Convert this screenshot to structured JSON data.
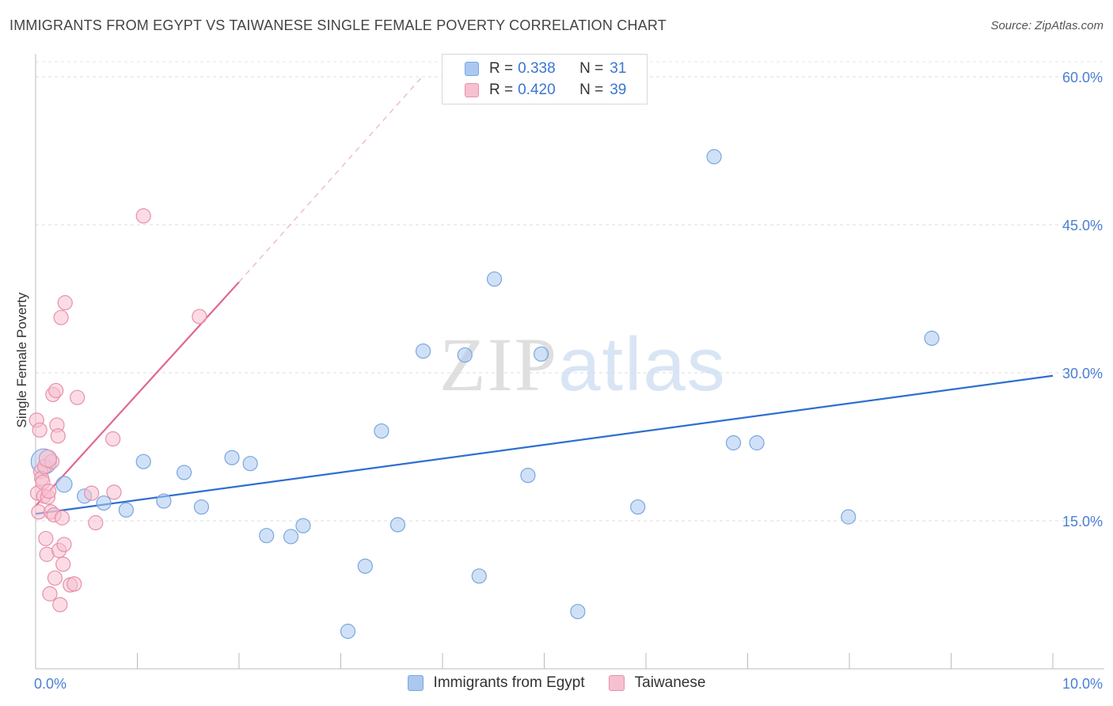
{
  "header": {
    "title": "IMMIGRANTS FROM EGYPT VS TAIWANESE SINGLE FEMALE POVERTY CORRELATION CHART",
    "source": "Source: ZipAtlas.com"
  },
  "watermark": {
    "zip": "ZIP",
    "atlas": "atlas"
  },
  "legend": {
    "r_label": "R =",
    "n_label": "N =",
    "rows": [
      {
        "r": "0.338",
        "n": "31",
        "color": "#aac8f0",
        "border": "#7aa6e0"
      },
      {
        "r": "0.420",
        "n": "39",
        "color": "#f7c0d0",
        "border": "#e890aa"
      }
    ]
  },
  "chart_data": {
    "type": "scatter",
    "title": "IMMIGRANTS FROM EGYPT VS TAIWANESE SINGLE FEMALE POVERTY CORRELATION CHART",
    "xlabel": "",
    "ylabel": "Single Female Poverty",
    "xlim": [
      0,
      10
    ],
    "ylim": [
      0,
      60
    ],
    "x_tick_labels": [
      "0.0%",
      "10.0%"
    ],
    "y_ticks": [
      15,
      30,
      45,
      60
    ],
    "y_tick_labels": [
      "15.0%",
      "30.0%",
      "45.0%",
      "60.0%"
    ],
    "grid": true,
    "legend_position": "top-center",
    "series": [
      {
        "name": "Immigrants from Egypt",
        "color": "#aac8f0",
        "stroke": "#7aa6e0",
        "line_color": "#2f6fcf",
        "points": [
          [
            0.08,
            21.0,
            16
          ],
          [
            0.28,
            18.7,
            10
          ],
          [
            0.48,
            17.5,
            9
          ],
          [
            0.67,
            16.8,
            9
          ],
          [
            0.89,
            16.1,
            9
          ],
          [
            1.06,
            21.0,
            9
          ],
          [
            1.26,
            17.0,
            9
          ],
          [
            1.46,
            19.9,
            9
          ],
          [
            1.63,
            16.4,
            9
          ],
          [
            1.93,
            21.4,
            9
          ],
          [
            2.11,
            20.8,
            9
          ],
          [
            2.27,
            13.5,
            9
          ],
          [
            2.51,
            13.4,
            9
          ],
          [
            2.63,
            14.5,
            9
          ],
          [
            3.07,
            3.8,
            9
          ],
          [
            3.24,
            10.4,
            9
          ],
          [
            3.4,
            24.1,
            9
          ],
          [
            3.56,
            14.6,
            9
          ],
          [
            3.81,
            32.2,
            9
          ],
          [
            4.22,
            31.8,
            9
          ],
          [
            4.36,
            9.4,
            9
          ],
          [
            4.51,
            39.5,
            9
          ],
          [
            4.84,
            19.6,
            9
          ],
          [
            4.97,
            31.9,
            9
          ],
          [
            5.33,
            5.8,
            9
          ],
          [
            5.92,
            16.4,
            9
          ],
          [
            6.67,
            51.9,
            9
          ],
          [
            6.86,
            22.9,
            9
          ],
          [
            7.09,
            22.9,
            9
          ],
          [
            7.99,
            15.4,
            9
          ],
          [
            8.81,
            33.5,
            9
          ]
        ],
        "trend": {
          "x0": 0,
          "y0": 15.7,
          "x1": 10,
          "y1": 29.7
        }
      },
      {
        "name": "Taiwanese",
        "color": "#f7c0d0",
        "stroke": "#e890aa",
        "line_color": "#e06890",
        "points": [
          [
            0.01,
            25.2,
            9
          ],
          [
            0.02,
            17.8,
            9
          ],
          [
            0.03,
            15.9,
            9
          ],
          [
            0.04,
            24.2,
            9
          ],
          [
            0.05,
            20.0,
            9
          ],
          [
            0.06,
            19.3,
            9
          ],
          [
            0.07,
            18.9,
            9
          ],
          [
            0.08,
            17.5,
            9
          ],
          [
            0.09,
            20.5,
            9
          ],
          [
            0.1,
            13.2,
            9
          ],
          [
            0.11,
            11.6,
            9
          ],
          [
            0.12,
            17.4,
            9
          ],
          [
            0.13,
            18.0,
            9
          ],
          [
            0.14,
            7.6,
            9
          ],
          [
            0.15,
            15.9,
            9
          ],
          [
            0.16,
            21.0,
            9
          ],
          [
            0.17,
            27.8,
            9
          ],
          [
            0.18,
            15.6,
            9
          ],
          [
            0.19,
            9.2,
            9
          ],
          [
            0.2,
            28.2,
            9
          ],
          [
            0.21,
            24.7,
            9
          ],
          [
            0.22,
            23.6,
            9
          ],
          [
            0.23,
            12.0,
            9
          ],
          [
            0.24,
            6.5,
            9
          ],
          [
            0.25,
            35.6,
            9
          ],
          [
            0.26,
            15.3,
            9
          ],
          [
            0.27,
            10.6,
            9
          ],
          [
            0.28,
            12.6,
            9
          ],
          [
            0.29,
            37.1,
            9
          ],
          [
            0.34,
            8.5,
            9
          ],
          [
            0.38,
            8.6,
            9
          ],
          [
            0.41,
            27.5,
            9
          ],
          [
            0.55,
            17.8,
            9
          ],
          [
            0.59,
            14.8,
            9
          ],
          [
            0.76,
            23.3,
            9
          ],
          [
            0.77,
            17.9,
            9
          ],
          [
            1.06,
            45.9,
            9
          ],
          [
            1.61,
            35.7,
            9
          ],
          [
            0.12,
            21.3,
            11
          ]
        ],
        "trend": {
          "x0": 0,
          "y0": 16.5,
          "x1": 2.0,
          "y1": 39.2
        },
        "trend_dashed": {
          "x0": 2.0,
          "y0": 39.2,
          "x1": 3.8,
          "y1": 60.0
        }
      }
    ]
  }
}
